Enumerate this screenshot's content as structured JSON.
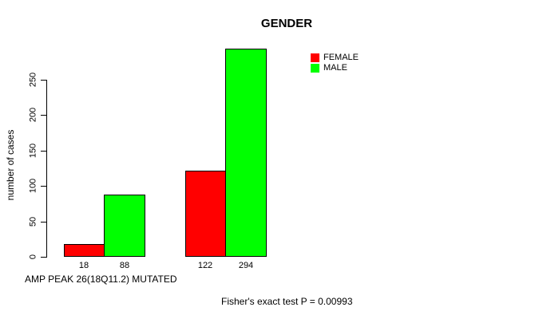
{
  "chart_data": {
    "type": "bar",
    "title": "GENDER",
    "xlabel": "AMP PEAK 26(18Q11.2) MUTATED",
    "ylabel": "number of cases",
    "ylim": [
      0,
      250
    ],
    "yticks": [
      0,
      50,
      100,
      150,
      200,
      250
    ],
    "categories": [
      "",
      ""
    ],
    "series": [
      {
        "name": "FEMALE",
        "color": "#FF0000",
        "values": [
          18,
          122
        ]
      },
      {
        "name": "MALE",
        "color": "#00FF00",
        "values": [
          88,
          294
        ]
      }
    ],
    "bar_value_labels": [
      18,
      88,
      122,
      294
    ],
    "annotation": "Fisher's exact test P = 0.00993",
    "legend_position": "top-right",
    "grid": false,
    "background": "#FFFFFF",
    "bar_border_color": "#000000"
  }
}
